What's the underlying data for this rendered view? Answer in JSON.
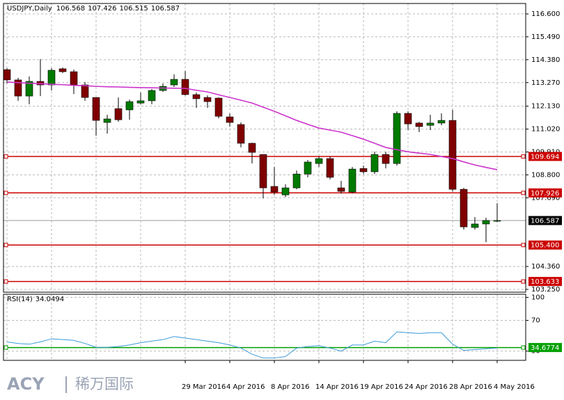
{
  "chart_data": [
    {
      "type": "candlestick",
      "title": "USDJPY,Daily",
      "categories": [
        null,
        null,
        null,
        null,
        null,
        null,
        null,
        null,
        null,
        null,
        null,
        null,
        null,
        null,
        null,
        null,
        "29 Mar 2016",
        null,
        null,
        null,
        "4 Apr 2016",
        null,
        null,
        null,
        "8 Apr 2016",
        null,
        null,
        null,
        "14 Apr 2016",
        null,
        null,
        null,
        "19 Apr 2016",
        null,
        null,
        null,
        "24 Apr 2016",
        null,
        null,
        null,
        "28 Apr 2016",
        null,
        null,
        null,
        "4 May 2016"
      ],
      "open": [
        113.9,
        113.4,
        112.62,
        113.33,
        113.16,
        113.94,
        113.8,
        113.16,
        112.55,
        111.34,
        112.01,
        111.95,
        112.28,
        112.39,
        112.89,
        113.16,
        113.43,
        112.69,
        112.55,
        112.52,
        111.61,
        111.24,
        110.33,
        109.79,
        108.24,
        107.83,
        108.17,
        108.84,
        109.35,
        109.59,
        108.17,
        107.97,
        109.11,
        108.95,
        109.79,
        109.35,
        111.78,
        111.31,
        111.2,
        111.31,
        111.44,
        108.1,
        106.25,
        106.42,
        106.568
      ],
      "high": [
        113.97,
        113.5,
        113.57,
        114.41,
        113.97,
        114.0,
        113.9,
        113.3,
        112.55,
        111.71,
        112.55,
        112.45,
        112.79,
        112.96,
        113.23,
        113.67,
        113.83,
        112.79,
        112.65,
        112.55,
        111.78,
        111.34,
        110.36,
        109.79,
        109.18,
        108.34,
        109.01,
        109.52,
        109.69,
        109.69,
        108.51,
        109.18,
        109.25,
        109.92,
        109.92,
        111.88,
        111.88,
        111.37,
        111.71,
        111.78,
        111.95,
        108.17,
        106.75,
        106.72,
        107.426
      ],
      "low": [
        113.23,
        112.39,
        112.22,
        112.62,
        112.89,
        113.73,
        112.72,
        112.39,
        110.7,
        110.8,
        111.37,
        111.47,
        112.22,
        112.22,
        112.82,
        113.06,
        112.65,
        112.05,
        112.05,
        111.54,
        111.14,
        110.13,
        109.35,
        107.66,
        107.83,
        107.73,
        108.1,
        108.68,
        109.18,
        108.58,
        107.9,
        107.9,
        108.84,
        108.84,
        109.11,
        109.25,
        110.97,
        110.87,
        110.97,
        111.2,
        108.0,
        106.15,
        106.15,
        105.54,
        106.515
      ],
      "close": [
        113.4,
        112.62,
        113.33,
        113.16,
        113.87,
        113.8,
        113.16,
        112.55,
        111.44,
        111.51,
        111.47,
        112.35,
        112.39,
        112.89,
        113.09,
        113.43,
        112.69,
        112.49,
        112.35,
        111.64,
        111.34,
        110.33,
        109.89,
        108.17,
        107.97,
        108.17,
        108.84,
        109.42,
        109.59,
        108.68,
        108.0,
        109.08,
        108.95,
        109.79,
        109.35,
        111.78,
        111.27,
        111.14,
        111.31,
        111.44,
        108.1,
        106.28,
        106.42,
        106.59,
        106.587
      ],
      "up_color": "#007a00",
      "down_color": "#800000",
      "ma": {
        "color": "#cc33cc",
        "values": [
          113.3,
          113.27,
          113.24,
          113.22,
          113.19,
          113.17,
          113.14,
          113.12,
          113.09,
          113.07,
          113.06,
          113.04,
          113.03,
          113.02,
          113.01,
          113.0,
          112.99,
          112.9,
          112.82,
          112.68,
          112.55,
          112.42,
          112.28,
          112.08,
          111.88,
          111.66,
          111.44,
          111.25,
          111.07,
          110.97,
          110.87,
          110.7,
          110.53,
          110.33,
          110.13,
          110.02,
          109.92,
          109.85,
          109.79,
          109.69,
          109.59,
          109.43,
          109.28,
          109.16,
          109.05
        ]
      },
      "levels": [
        {
          "value": 109.694,
          "color": "#cc0000"
        },
        {
          "value": 107.926,
          "color": "#cc0000"
        },
        {
          "value": 105.4,
          "label": "105.400",
          "color": "#cc0000"
        },
        {
          "value": 103.633,
          "color": "#cc0000"
        }
      ],
      "last_price": {
        "value": 106.587,
        "color": "#000000"
      },
      "ylim": [
        103.115,
        117.106
      ],
      "yticks": [
        {
          "value": 116.6,
          "label": "116.600"
        },
        {
          "value": 115.49,
          "label": "115.490"
        },
        {
          "value": 114.38,
          "label": "114.380"
        },
        {
          "value": 113.27,
          "label": "113.270"
        },
        {
          "value": 112.13,
          "label": "112.130"
        },
        {
          "value": 111.02,
          "label": "111.020"
        },
        {
          "value": 109.91,
          "label": "109.910"
        },
        {
          "value": 108.8,
          "label": "108.800"
        },
        {
          "value": 107.69,
          "label": "107.690"
        },
        {
          "value": 104.36,
          "label": "104.360"
        },
        {
          "value": 103.25,
          "label": "103.250"
        }
      ],
      "grid": true
    },
    {
      "type": "line",
      "title": "RSI(14)",
      "color": "#3a9ad9",
      "values": [
        42,
        40,
        39,
        42,
        46,
        45,
        44,
        40,
        35,
        35,
        36,
        38,
        41,
        43,
        45,
        49,
        47,
        45,
        43,
        41,
        38,
        34,
        26,
        21,
        21,
        23,
        34,
        36,
        37,
        34,
        30,
        38,
        38,
        43,
        41,
        55,
        54,
        53,
        54,
        54,
        39,
        31,
        32,
        33,
        34.0494
      ],
      "levels": [
        {
          "value": 34.6774,
          "color": "#00a000"
        }
      ],
      "ylim": [
        18,
        104
      ],
      "yticks": [
        100,
        70,
        30
      ],
      "grid": true
    }
  ],
  "watermark": {
    "brand": "ACY",
    "name": "稀万国际"
  }
}
